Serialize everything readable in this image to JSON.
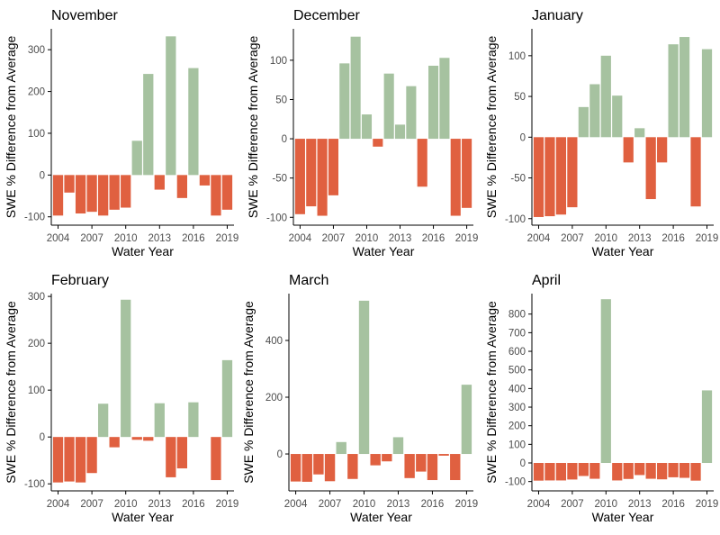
{
  "colors": {
    "positive": "#a6c2a0",
    "negative": "#e06040",
    "axis": "#000000",
    "tick_label": "#4d4d4d"
  },
  "chart_data": [
    {
      "type": "bar",
      "title": "November",
      "xlabel": "Water Year",
      "ylabel": "SWE % Difference from Average",
      "x": [
        2004,
        2005,
        2006,
        2007,
        2008,
        2009,
        2010,
        2011,
        2012,
        2013,
        2014,
        2015,
        2016,
        2017,
        2018,
        2019
      ],
      "values": [
        -97,
        -42,
        -92,
        -88,
        -97,
        -83,
        -78,
        82,
        242,
        -35,
        332,
        -55,
        256,
        -25,
        -97,
        -83
      ],
      "x_ticks": [
        2004,
        2007,
        2010,
        2013,
        2016,
        2019
      ],
      "y_ticks": [
        -100,
        0,
        100,
        200,
        300
      ],
      "ylim": [
        -120,
        350
      ]
    },
    {
      "type": "bar",
      "title": "December",
      "xlabel": "Water Year",
      "ylabel": "SWE % Difference from Average",
      "x": [
        2004,
        2005,
        2006,
        2007,
        2008,
        2009,
        2010,
        2011,
        2012,
        2013,
        2014,
        2015,
        2016,
        2017,
        2018,
        2019
      ],
      "values": [
        -96,
        -86,
        -98,
        -72,
        96,
        130,
        31,
        -10,
        83,
        18,
        67,
        -61,
        93,
        103,
        -98,
        -88
      ],
      "x_ticks": [
        2004,
        2007,
        2010,
        2013,
        2016,
        2019
      ],
      "y_ticks": [
        -100,
        -50,
        0,
        50,
        100
      ],
      "ylim": [
        -110,
        140
      ]
    },
    {
      "type": "bar",
      "title": "January",
      "xlabel": "Water Year",
      "ylabel": "SWE % Difference from Average",
      "x": [
        2004,
        2005,
        2006,
        2007,
        2008,
        2009,
        2010,
        2011,
        2012,
        2013,
        2014,
        2015,
        2016,
        2017,
        2018,
        2019
      ],
      "values": [
        -98,
        -97,
        -95,
        -86,
        37,
        65,
        100,
        51,
        -31,
        11,
        -76,
        -31,
        114,
        123,
        -85,
        108
      ],
      "x_ticks": [
        2004,
        2007,
        2010,
        2013,
        2016,
        2019
      ],
      "y_ticks": [
        -100,
        -50,
        0,
        50,
        100
      ],
      "ylim": [
        -108,
        133
      ]
    },
    {
      "type": "bar",
      "title": "February",
      "xlabel": "Water Year",
      "ylabel": "SWE % Difference from Average",
      "x": [
        2004,
        2005,
        2006,
        2007,
        2008,
        2009,
        2010,
        2011,
        2012,
        2013,
        2014,
        2015,
        2016,
        2017,
        2018,
        2019
      ],
      "values": [
        -97,
        -95,
        -97,
        -77,
        71,
        -22,
        293,
        -6,
        -8,
        72,
        -86,
        -67,
        74,
        null,
        -92,
        164
      ],
      "x_ticks": [
        2004,
        2007,
        2010,
        2013,
        2016,
        2019
      ],
      "y_ticks": [
        -100,
        0,
        100,
        200,
        300
      ],
      "ylim": [
        -115,
        306
      ]
    },
    {
      "type": "bar",
      "title": "March",
      "xlabel": "Water Year",
      "ylabel": "SWE % Difference from Average",
      "x": [
        2004,
        2005,
        2006,
        2007,
        2008,
        2009,
        2010,
        2011,
        2012,
        2013,
        2014,
        2015,
        2016,
        2017,
        2018,
        2019
      ],
      "values": [
        -97,
        -98,
        -72,
        -96,
        42,
        -88,
        540,
        -40,
        -26,
        59,
        -85,
        -62,
        -92,
        -6,
        -92,
        244
      ],
      "x_ticks": [
        2004,
        2007,
        2010,
        2013,
        2016,
        2019
      ],
      "y_ticks": [
        0,
        200,
        400
      ],
      "ylim": [
        -130,
        565
      ]
    },
    {
      "type": "bar",
      "title": "April",
      "xlabel": "Water Year",
      "ylabel": "SWE % Difference from Average",
      "x": [
        2004,
        2005,
        2006,
        2007,
        2008,
        2009,
        2010,
        2011,
        2012,
        2013,
        2014,
        2015,
        2016,
        2017,
        2018,
        2019
      ],
      "values": [
        -95,
        -94,
        -94,
        -89,
        -70,
        -85,
        880,
        -94,
        -86,
        -65,
        -85,
        -88,
        -77,
        -80,
        -95,
        390
      ],
      "x_ticks": [
        2004,
        2007,
        2010,
        2013,
        2016,
        2019
      ],
      "y_ticks": [
        -100,
        0,
        100,
        200,
        300,
        400,
        500,
        600,
        700,
        800
      ],
      "ylim": [
        -150,
        910
      ]
    }
  ]
}
